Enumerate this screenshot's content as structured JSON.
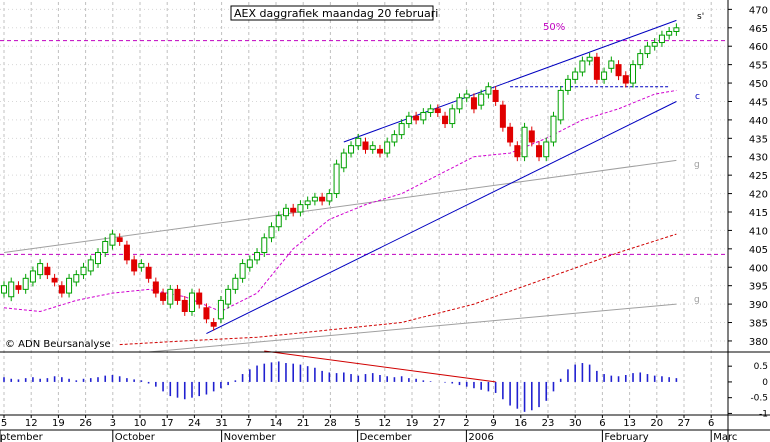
{
  "chart_data": {
    "type": "candlestick",
    "title": "AEX daggrafiek maandag 20 februari",
    "watermark": "© ADN Beursanalyse",
    "annotation_pct": "50%",
    "annotation_labels": {
      "upper_channel": "s'",
      "lower_channel": "c",
      "ma_gray_upper": "g",
      "ma_gray_lower": "g"
    },
    "colors": {
      "up": "#00a000",
      "down": "#e00000",
      "grid": "#c0c0c0",
      "hline": "#c000c0",
      "ma_magenta": "#d000d0",
      "ma_red": "#d00000",
      "ma_gray": "#a0a0a0",
      "trend": "#0000c0",
      "osc": "#2020d0"
    },
    "ylim": [
      377,
      472
    ],
    "y_ticks": [
      380,
      385,
      390,
      395,
      400,
      405,
      410,
      415,
      420,
      425,
      430,
      435,
      440,
      445,
      450,
      455,
      460,
      465,
      470
    ],
    "hlines": [
      461.5,
      403.5
    ],
    "neckline": 449,
    "x_day_labels": [
      "5",
      "12",
      "19",
      "26",
      "3",
      "10",
      "17",
      "24",
      "31",
      "7",
      "14",
      "21",
      "28",
      "5",
      "12",
      "19",
      "27",
      "2",
      "9",
      "16",
      "23",
      "30",
      "6",
      "13",
      "20",
      "27",
      "6"
    ],
    "month_labels": [
      {
        "label": "ptember",
        "at": 0
      },
      {
        "label": "October",
        "at": 4
      },
      {
        "label": "November",
        "at": 8
      },
      {
        "label": "December",
        "at": 13
      },
      {
        "label": "2006",
        "at": 17
      },
      {
        "label": "February",
        "at": 22
      },
      {
        "label": "Marc",
        "at": 26
      }
    ],
    "candles": [
      [
        393,
        395
      ],
      [
        392,
        396
      ],
      [
        395,
        394
      ],
      [
        394,
        397
      ],
      [
        396,
        399
      ],
      [
        398,
        401
      ],
      [
        400,
        398
      ],
      [
        397,
        396
      ],
      [
        395,
        393
      ],
      [
        393,
        397
      ],
      [
        396,
        398
      ],
      [
        398,
        400
      ],
      [
        399,
        402
      ],
      [
        401,
        404
      ],
      [
        404,
        407
      ],
      [
        406,
        409
      ],
      [
        408,
        407
      ],
      [
        406,
        402
      ],
      [
        402,
        399
      ],
      [
        400,
        401
      ],
      [
        400,
        397
      ],
      [
        396,
        393
      ],
      [
        393,
        391
      ],
      [
        390,
        394
      ],
      [
        394,
        391
      ],
      [
        391,
        388
      ],
      [
        388,
        393
      ],
      [
        393,
        390
      ],
      [
        389,
        386
      ],
      [
        385,
        384
      ],
      [
        386,
        391
      ],
      [
        390,
        394
      ],
      [
        394,
        397
      ],
      [
        397,
        401
      ],
      [
        400,
        402
      ],
      [
        402,
        404
      ],
      [
        404,
        408
      ],
      [
        408,
        411
      ],
      [
        411,
        414
      ],
      [
        414,
        416
      ],
      [
        416,
        415
      ],
      [
        415,
        417
      ],
      [
        417,
        418
      ],
      [
        418,
        419
      ],
      [
        419,
        418
      ],
      [
        418,
        420
      ],
      [
        420,
        428
      ],
      [
        427,
        431
      ],
      [
        431,
        433
      ],
      [
        433,
        435
      ],
      [
        434,
        432
      ],
      [
        432,
        433
      ],
      [
        432,
        431
      ],
      [
        431,
        434
      ],
      [
        434,
        436
      ],
      [
        436,
        439
      ],
      [
        439,
        441
      ],
      [
        441,
        440
      ],
      [
        440,
        442
      ],
      [
        442,
        443
      ],
      [
        443,
        442
      ],
      [
        441,
        439
      ],
      [
        439,
        443
      ],
      [
        443,
        446
      ],
      [
        446,
        447
      ],
      [
        446,
        443
      ],
      [
        444,
        447
      ],
      [
        447,
        449
      ],
      [
        448,
        445
      ],
      [
        444,
        438
      ],
      [
        438,
        434
      ],
      [
        433,
        430
      ],
      [
        430,
        438
      ],
      [
        437,
        434
      ],
      [
        433,
        430
      ],
      [
        430,
        434
      ],
      [
        434,
        441
      ],
      [
        440,
        448
      ],
      [
        448,
        451
      ],
      [
        451,
        453
      ],
      [
        453,
        456
      ],
      [
        456,
        457
      ],
      [
        457,
        451
      ],
      [
        451,
        453
      ],
      [
        454,
        456
      ],
      [
        455,
        452
      ],
      [
        452,
        450
      ],
      [
        450,
        455
      ],
      [
        455,
        458
      ],
      [
        458,
        460
      ],
      [
        460,
        461
      ],
      [
        461,
        463
      ],
      [
        463,
        464
      ],
      [
        464,
        465
      ]
    ],
    "osc_ylim": [
      -1.05,
      0.95
    ],
    "osc_ticks": [
      0.5,
      0,
      -0.5,
      -1
    ],
    "osc_tick_labels": [
      "0.5",
      "0",
      "-0.5",
      "-1"
    ],
    "oscillator": [
      0.15,
      0.1,
      0.08,
      0.12,
      0.15,
      0.1,
      0.12,
      0.18,
      0.15,
      0.1,
      0.05,
      0.1,
      0.12,
      0.15,
      0.2,
      0.22,
      0.18,
      0.12,
      0.08,
      0.05,
      -0.05,
      -0.15,
      -0.3,
      -0.45,
      -0.5,
      -0.55,
      -0.5,
      -0.45,
      -0.4,
      -0.3,
      -0.2,
      -0.1,
      0.05,
      0.25,
      0.4,
      0.52,
      0.58,
      0.62,
      0.65,
      0.6,
      0.58,
      0.55,
      0.5,
      0.45,
      0.35,
      0.3,
      0.28,
      0.3,
      0.25,
      0.2,
      0.25,
      0.28,
      0.22,
      0.18,
      0.15,
      0.18,
      0.12,
      0.1,
      0.05,
      0.02,
      0.0,
      -0.02,
      -0.05,
      -0.1,
      -0.15,
      -0.2,
      -0.25,
      -0.3,
      -0.35,
      -0.55,
      -0.75,
      -0.85,
      -0.95,
      -0.9,
      -0.8,
      -0.6,
      -0.3,
      0.1,
      0.4,
      0.55,
      0.6,
      0.55,
      0.35,
      0.25,
      0.2,
      0.18,
      0.22,
      0.28,
      0.3,
      0.25,
      0.2,
      0.18,
      0.15,
      0.12
    ],
    "trendlines": {
      "upper_channel": [
        [
          47,
          434
        ],
        [
          93,
          467
        ]
      ],
      "lower_channel": [
        [
          28,
          382
        ],
        [
          93,
          445
        ]
      ],
      "magenta_ma": [
        [
          0,
          389
        ],
        [
          5,
          388
        ],
        [
          10,
          391
        ],
        [
          15,
          393
        ],
        [
          20,
          394
        ],
        [
          25,
          392
        ],
        [
          30,
          388
        ],
        [
          35,
          393
        ],
        [
          40,
          405
        ],
        [
          45,
          413
        ],
        [
          50,
          417
        ],
        [
          55,
          420
        ],
        [
          60,
          425
        ],
        [
          65,
          430
        ],
        [
          70,
          431
        ],
        [
          75,
          435
        ],
        [
          80,
          440
        ],
        [
          85,
          443
        ],
        [
          90,
          447
        ],
        [
          93,
          448
        ]
      ],
      "red_ma": [
        [
          16,
          379
        ],
        [
          25,
          380
        ],
        [
          35,
          381
        ],
        [
          45,
          383
        ],
        [
          55,
          385
        ],
        [
          65,
          390
        ],
        [
          75,
          397
        ],
        [
          85,
          404
        ],
        [
          93,
          409
        ]
      ],
      "gray_upper": [
        [
          0,
          404
        ],
        [
          93,
          429
        ]
      ],
      "gray_lower": [
        [
          20,
          377
        ],
        [
          93,
          390
        ]
      ],
      "osc_red": [
        [
          36,
          0.98
        ],
        [
          68,
          0.0
        ]
      ]
    }
  }
}
